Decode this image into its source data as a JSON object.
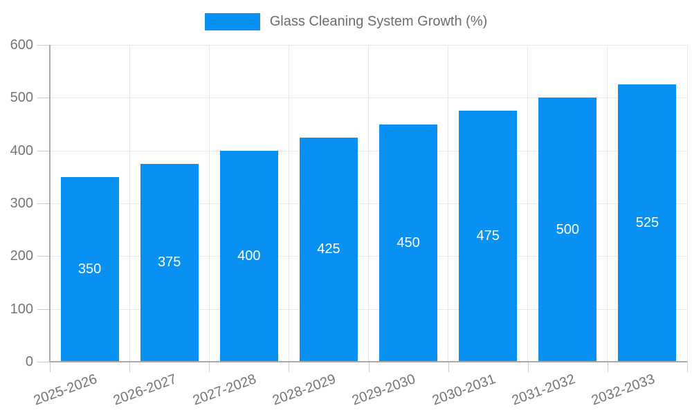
{
  "chart_data": {
    "type": "bar",
    "title": "",
    "series": [
      {
        "name": "Glass Cleaning System Growth (%)",
        "values": [
          350,
          375,
          400,
          425,
          450,
          475,
          500,
          525
        ]
      }
    ],
    "categories": [
      "2025-2026",
      "2026-2027",
      "2027-2028",
      "2028-2029",
      "2029-2030",
      "2030-2031",
      "2031-2032",
      "2032-2033"
    ],
    "xlabel": "",
    "ylabel": "",
    "ylim": [
      0,
      600
    ],
    "yticks": [
      0,
      100,
      200,
      300,
      400,
      500,
      600
    ],
    "grid": true,
    "legend_position": "top",
    "bar_value_labels_visible": true,
    "colors": {
      "bar": "#0990f3",
      "bar_label": "#ffffff",
      "grid": "#e8e8e8",
      "axis": "#a9a9a9",
      "tick": "#c9c9c9",
      "text": "#757575",
      "legend_text": "#6d6d6d",
      "background": "#ffffff"
    }
  }
}
